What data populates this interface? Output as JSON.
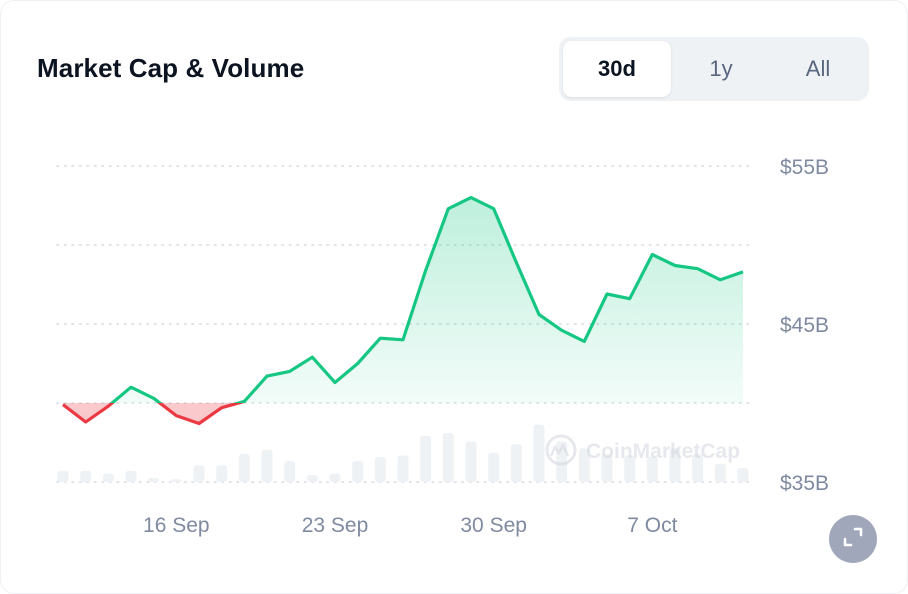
{
  "header": {
    "title": "Market Cap & Volume"
  },
  "range_tabs": [
    {
      "label": "30d",
      "active": true
    },
    {
      "label": "1y",
      "active": false
    },
    {
      "label": "All",
      "active": false
    }
  ],
  "watermark": "CoinMarketCap",
  "colors": {
    "up": "#16c784",
    "down": "#ea3943",
    "grid": "#d6dae1",
    "volume_bar": "#eff2f5",
    "text_muted": "#7f8aa0"
  },
  "icons": {
    "expand": "expand-icon",
    "watermark_logo": "coinmarketcap-logo-icon"
  },
  "chart_data": {
    "type": "area",
    "title": "Market Cap & Volume",
    "y_tick_labels": [
      "$55B",
      "$45B",
      "$35B"
    ],
    "y_ticks": [
      55,
      50,
      45,
      40,
      35
    ],
    "ylim": [
      35,
      55
    ],
    "x_tick_labels": [
      "16 Sep",
      "23 Sep",
      "30 Sep",
      "7 Oct"
    ],
    "x_ticks": [
      5,
      12,
      19,
      26
    ],
    "baseline": 40,
    "grid": true,
    "series": [
      {
        "x": [
          0,
          1,
          2,
          3,
          4,
          5,
          6,
          7,
          8,
          9,
          10,
          11,
          12,
          13,
          14,
          15,
          16,
          17,
          18,
          19,
          20,
          21,
          22,
          23,
          24,
          25,
          26,
          27,
          28,
          29,
          30
        ],
        "values": [
          39.9,
          38.8,
          39.8,
          41.0,
          40.3,
          39.2,
          38.7,
          39.7,
          40.1,
          41.7,
          42.0,
          42.9,
          41.3,
          42.5,
          44.1,
          44.0,
          48.4,
          52.3,
          53.0,
          52.3,
          48.9,
          45.6,
          44.6,
          43.9,
          46.9,
          46.6,
          49.4,
          48.7,
          48.5,
          47.8,
          48.3
        ]
      }
    ],
    "volume": {
      "x": [
        0,
        1,
        2,
        3,
        4,
        5,
        6,
        7,
        8,
        9,
        10,
        11,
        12,
        13,
        14,
        15,
        16,
        17,
        18,
        19,
        20,
        21,
        22,
        23,
        24,
        25,
        26,
        27,
        28,
        29,
        30
      ],
      "values": [
        0.8,
        0.8,
        0.6,
        0.8,
        0.3,
        0.2,
        1.2,
        1.2,
        2.0,
        2.3,
        1.5,
        0.5,
        0.6,
        1.5,
        1.8,
        1.9,
        3.3,
        3.5,
        2.9,
        2.1,
        2.7,
        4.1,
        2.9,
        2.4,
        2.0,
        1.9,
        1.8,
        2.4,
        2.0,
        1.3,
        1.0
      ]
    }
  }
}
